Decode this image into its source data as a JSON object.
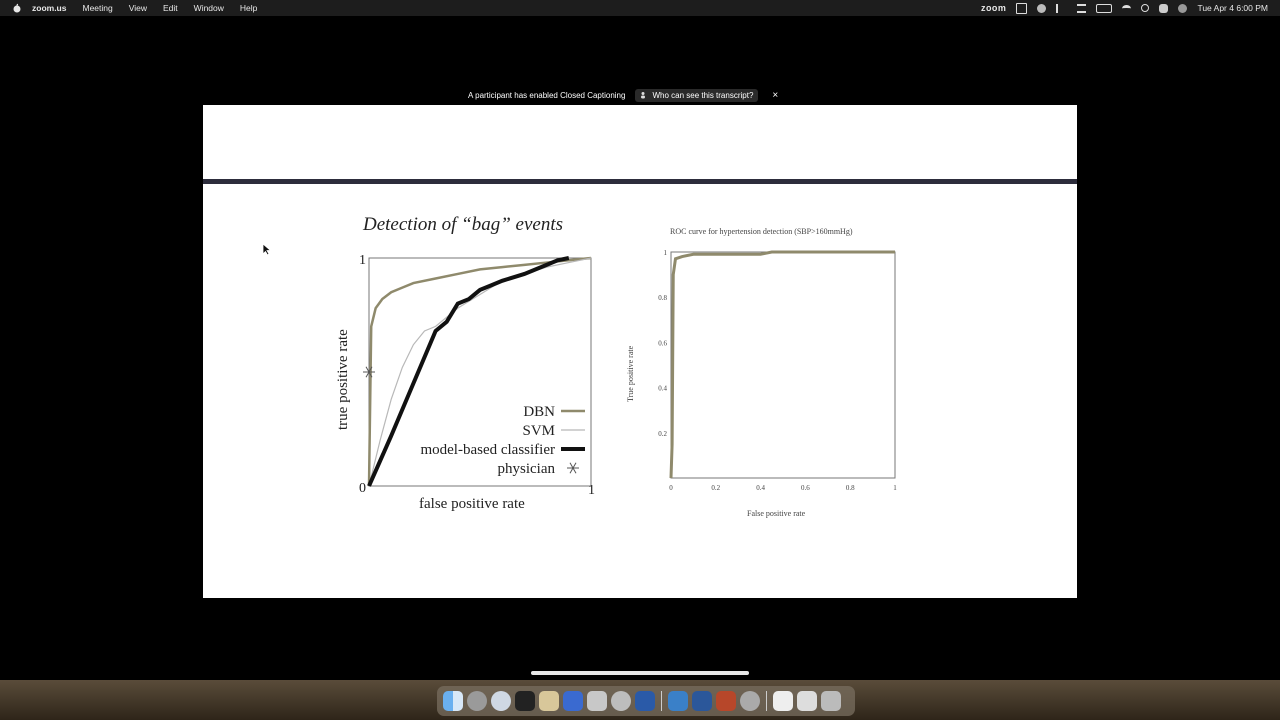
{
  "menubar": {
    "app_name": "zoom.us",
    "menus": [
      "Meeting",
      "View",
      "Edit",
      "Window",
      "Help"
    ],
    "zoom_label": "zoom",
    "datetime": "Tue Apr 4  6:00 PM"
  },
  "caption_banner": {
    "message": "A participant has enabled Closed Captioning",
    "link_label": "Who can see this transcript?",
    "close_symbol": "×"
  },
  "chart_data": [
    {
      "type": "line",
      "title": "Detection of “bag” events",
      "xlabel": "false positive rate",
      "ylabel": "true positive rate",
      "xlim": [
        0,
        1
      ],
      "ylim": [
        0,
        1
      ],
      "xticks": [
        "0",
        "1"
      ],
      "yticks": [
        "0",
        "1"
      ],
      "legend_position": "bottom-right",
      "series": [
        {
          "name": "DBN",
          "color": "#8f8a6c",
          "x": [
            0,
            0.01,
            0.03,
            0.06,
            0.1,
            0.15,
            0.2,
            0.3,
            0.4,
            0.5,
            0.6,
            0.7,
            0.8,
            0.9,
            1
          ],
          "y": [
            0,
            0.7,
            0.78,
            0.82,
            0.85,
            0.87,
            0.89,
            0.91,
            0.93,
            0.95,
            0.96,
            0.97,
            0.98,
            0.99,
            1
          ]
        },
        {
          "name": "SVM",
          "color": "#b8b8b8",
          "x": [
            0,
            0.05,
            0.1,
            0.15,
            0.2,
            0.25,
            0.3,
            0.4,
            0.5,
            0.6,
            0.7,
            0.8,
            0.9,
            1
          ],
          "y": [
            0,
            0.2,
            0.38,
            0.52,
            0.62,
            0.68,
            0.7,
            0.78,
            0.84,
            0.9,
            0.93,
            0.96,
            0.98,
            1
          ]
        },
        {
          "name": "model-based classifier",
          "color": "#111111",
          "x": [
            0,
            0.1,
            0.2,
            0.3,
            0.35,
            0.4,
            0.45,
            0.5,
            0.55,
            0.6,
            0.7,
            0.8,
            0.85,
            0.9
          ],
          "y": [
            0,
            0.22,
            0.45,
            0.68,
            0.72,
            0.8,
            0.82,
            0.86,
            0.88,
            0.9,
            0.93,
            0.97,
            0.99,
            1
          ]
        }
      ],
      "points": [
        {
          "name": "physician",
          "x": 0.0,
          "y": 0.5,
          "marker": "asterisk"
        }
      ]
    },
    {
      "type": "line",
      "title": "ROC curve for hypertension detection (SBP>160mmHg)",
      "xlabel": "False positive rate",
      "ylabel": "True positive rate",
      "xlim": [
        0,
        1
      ],
      "ylim": [
        0,
        1
      ],
      "xticks": [
        "0",
        "0.2",
        "0.4",
        "0.6",
        "0.8",
        "1"
      ],
      "yticks": [
        "0.2",
        "0.4",
        "0.6",
        "0.8",
        "1"
      ],
      "series": [
        {
          "color": "#8f8a6c",
          "x": [
            0,
            0.005,
            0.01,
            0.02,
            0.05,
            0.1,
            0.2,
            0.3,
            0.4,
            0.45,
            1
          ],
          "y": [
            0,
            0.15,
            0.9,
            0.97,
            0.98,
            0.99,
            0.99,
            0.99,
            0.99,
            1.0,
            1.0
          ]
        }
      ]
    }
  ]
}
